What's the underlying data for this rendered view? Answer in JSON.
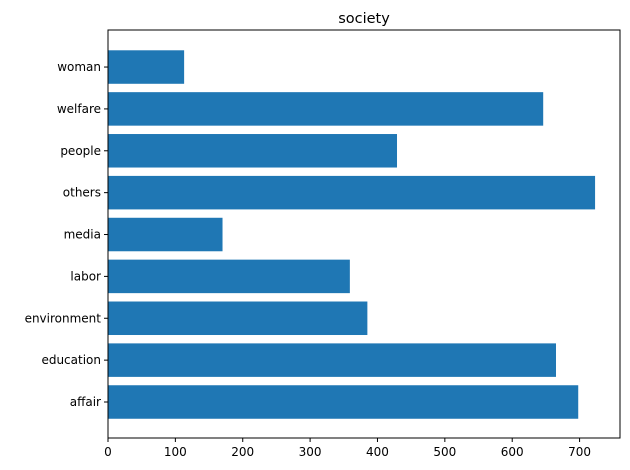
{
  "chart_data": {
    "type": "bar",
    "orientation": "horizontal",
    "title": "society",
    "xlabel": "",
    "ylabel": "",
    "categories": [
      "affair",
      "education",
      "environment",
      "labor",
      "media",
      "others",
      "people",
      "welfare",
      "woman"
    ],
    "values": [
      698,
      665,
      385,
      359,
      170,
      723,
      429,
      646,
      113
    ],
    "xlim": [
      0,
      760
    ],
    "xticks": [
      0,
      100,
      200,
      300,
      400,
      500,
      600,
      700
    ],
    "grid": false,
    "bar_color": "#1f77b4"
  }
}
